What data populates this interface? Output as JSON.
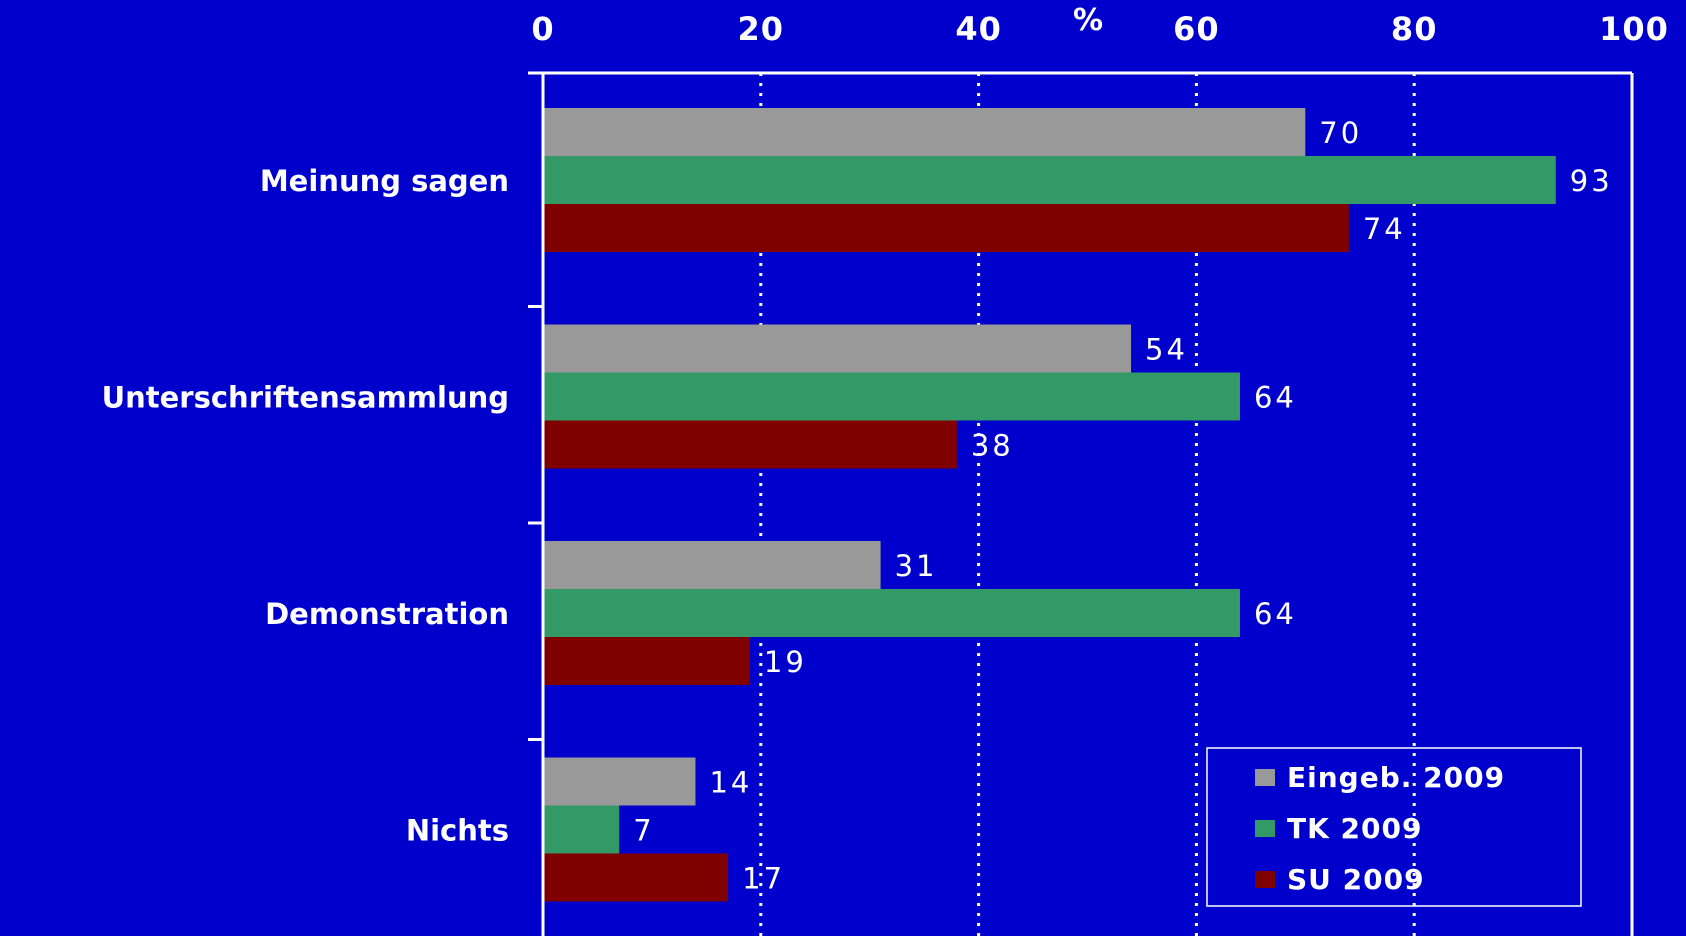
{
  "chart_data": {
    "type": "bar",
    "orientation": "horizontal",
    "unit_label": "%",
    "categories": [
      "Meinung sagen",
      "Unterschriftensammlung",
      "Demonstration",
      "Nichts"
    ],
    "series": [
      {
        "name": "Eingeb. 2009",
        "color": "#999999",
        "values": [
          70,
          54,
          31,
          14
        ]
      },
      {
        "name": "TK 2009",
        "color": "#339966",
        "values": [
          93,
          64,
          64,
          7
        ]
      },
      {
        "name": "SU 2009",
        "color": "#800000",
        "values": [
          74,
          38,
          19,
          17
        ]
      }
    ],
    "xlim": [
      0,
      100
    ],
    "x_ticks": [
      0,
      20,
      40,
      60,
      80,
      100
    ],
    "x_tick_labels": [
      "0",
      "20",
      "40",
      "60",
      "80",
      "100"
    ],
    "axis_position": "top",
    "grid": "vertical dotted",
    "legend_position": "bottom-right",
    "colors": {
      "background": "#0000CC",
      "axis": "#ffffff",
      "text": "#ffffff"
    }
  }
}
